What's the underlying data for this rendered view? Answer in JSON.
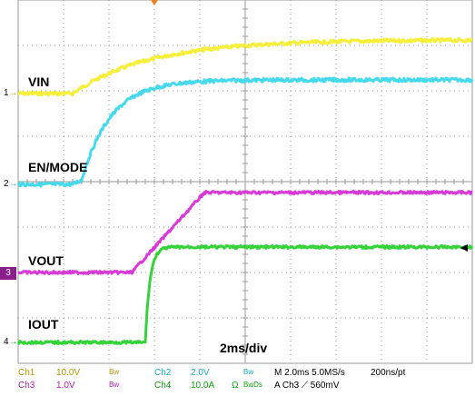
{
  "timebase_label": "2ms/div",
  "traces": [
    {
      "name": "VIN",
      "channel": "1",
      "color": "#f5ef3c"
    },
    {
      "name": "EN/MODE",
      "channel": "2",
      "color": "#46d9ec"
    },
    {
      "name": "VOUT",
      "channel": "3",
      "color": "#d83ad8"
    },
    {
      "name": "IOUT",
      "channel": "4",
      "color": "#35d23a"
    }
  ],
  "markers": {
    "ch1": "1",
    "ch2": "2",
    "ch3": "3",
    "ch4": "4"
  },
  "status": {
    "row1": {
      "ch1_label": "Ch1",
      "ch1_scale": "10.0V",
      "ch1_bw": "Bw",
      "ch2_label": "Ch2",
      "ch2_scale": "2.0V",
      "ch2_bw": "Bw",
      "timebase": "M 2.0ms 5.0MS/s",
      "sample": "200ns/pt"
    },
    "row2": {
      "ch3_label": "Ch3",
      "ch3_scale": "1.0V",
      "ch3_bw": "Bw",
      "ch4_label": "Ch4",
      "ch4_scale": "10.0A",
      "ch4_ohm": "Ω",
      "ch4_bw": "BwDs",
      "trigger": "A Ch3 ⟋ 560mV"
    }
  },
  "colors": {
    "grid": "#9a9a9a",
    "ch1": "#f5ef3c",
    "ch2": "#46d9ec",
    "ch3": "#d83ad8",
    "ch4": "#35d23a",
    "status_ch1": "#b89400",
    "status_ch2": "#1aa8c0",
    "status_ch3": "#b020b0",
    "status_ch4": "#10a010"
  }
}
